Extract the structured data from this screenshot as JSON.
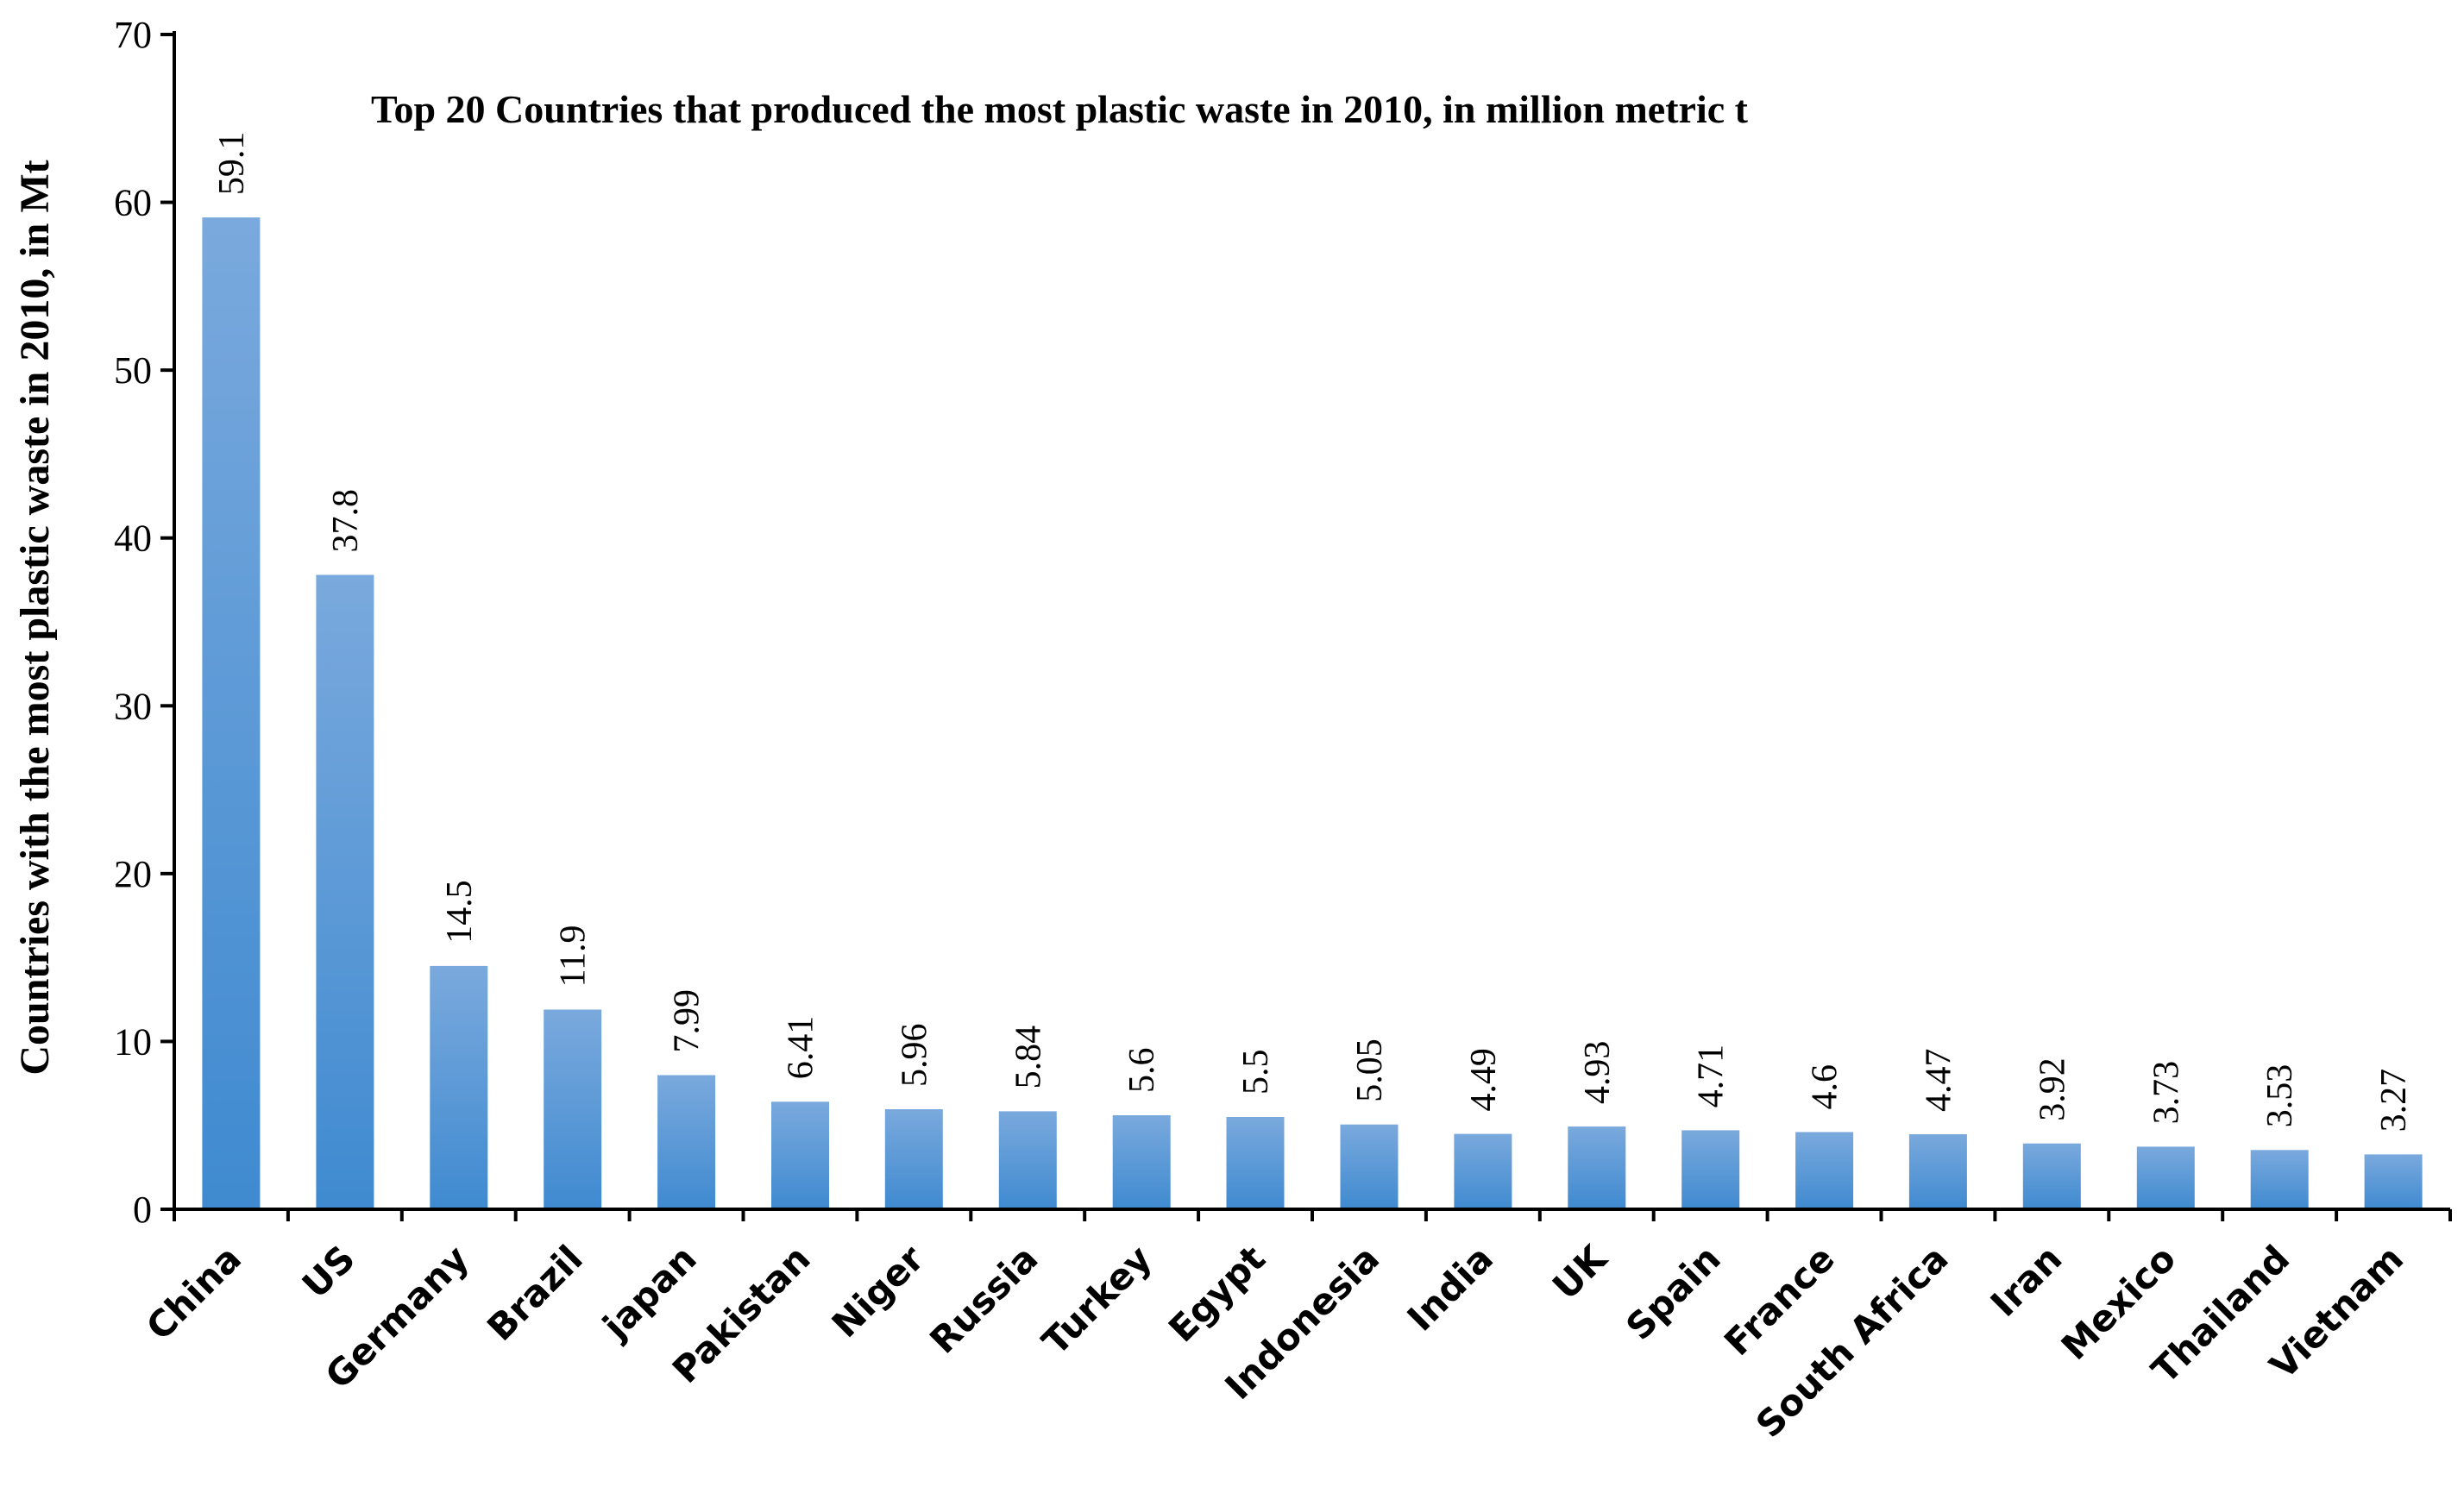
{
  "chart_data": {
    "type": "bar",
    "title": "Top 20 Countries that produced the most plastic waste in 2010, in million metric t",
    "xlabel": "",
    "ylabel": "Countries with the most plastic waste in 2010, in Mt",
    "ylim": [
      0,
      70
    ],
    "yticks": [
      0,
      10,
      20,
      30,
      40,
      50,
      60,
      70
    ],
    "grid": false,
    "categories": [
      "China",
      "US",
      "Germany",
      "Brazil",
      "japan",
      "Pakistan",
      "Niger",
      "Russia",
      "Turkey",
      "Egypt",
      "Indonesia",
      "India",
      "UK",
      "Spain",
      "France",
      "South Africa",
      "Iran",
      "Mexico",
      "Thailand",
      "Vietnam"
    ],
    "values": [
      59.1,
      37.8,
      14.5,
      11.9,
      7.99,
      6.41,
      5.96,
      5.84,
      5.6,
      5.5,
      5.05,
      4.49,
      4.93,
      4.71,
      4.6,
      4.47,
      3.92,
      3.73,
      3.53,
      3.27
    ],
    "value_labels": [
      "59.1",
      "37.8",
      "14.5",
      "11.9",
      "7.99",
      "6.41",
      "5.96",
      "5.84",
      "5.6",
      "5.5",
      "5.05",
      "4.49",
      "4.93",
      "4.71",
      "4.6",
      "4.47",
      "3.92",
      "3.73",
      "3.53",
      "3.27"
    ],
    "colors": {
      "bar_top": "#7aa9dd",
      "bar_bottom": "#3f8ad0",
      "axis": "#000000"
    }
  }
}
